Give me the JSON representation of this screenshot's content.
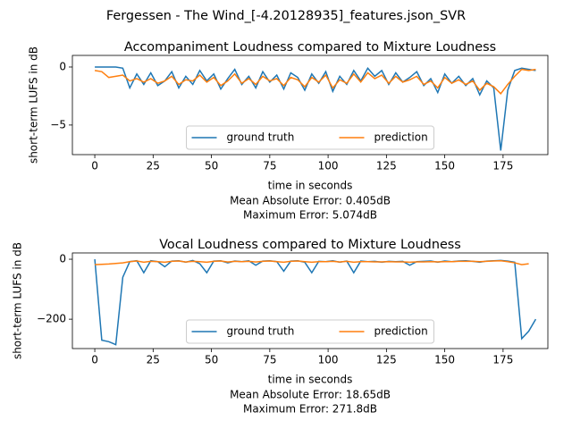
{
  "title": "Fergessen - The Wind_[-4.20128935]_features.json_SVR",
  "chart_data": [
    {
      "type": "line",
      "title": "Accompaniment Loudness compared to Mixture Loudness",
      "xlabel": "time in seconds",
      "ylabel": "short-term LUFS in dB",
      "annotations": [
        "Mean Absolute Error: 0.405dB",
        "Maximum Error: 5.074dB"
      ],
      "x": [
        0,
        3,
        6,
        9,
        12,
        15,
        18,
        21,
        24,
        27,
        30,
        33,
        36,
        39,
        42,
        45,
        48,
        51,
        54,
        57,
        60,
        63,
        66,
        69,
        72,
        75,
        78,
        81,
        84,
        87,
        90,
        93,
        96,
        99,
        102,
        105,
        108,
        111,
        114,
        117,
        120,
        123,
        126,
        129,
        132,
        135,
        138,
        141,
        144,
        147,
        150,
        153,
        156,
        159,
        162,
        165,
        168,
        171,
        174,
        177,
        180,
        183,
        186,
        189
      ],
      "series": [
        {
          "name": "ground truth",
          "color": "#1f77b4",
          "values": [
            0,
            0,
            0,
            0,
            -0.1,
            -1.8,
            -0.6,
            -1.5,
            -0.5,
            -1.6,
            -1.2,
            -0.4,
            -1.8,
            -0.8,
            -1.5,
            -0.3,
            -1.2,
            -0.6,
            -1.9,
            -1.0,
            -0.2,
            -1.5,
            -0.8,
            -1.8,
            -0.4,
            -1.3,
            -0.7,
            -1.9,
            -0.5,
            -0.9,
            -2.0,
            -0.6,
            -1.4,
            -0.4,
            -2.1,
            -0.8,
            -1.5,
            -0.3,
            -1.2,
            -0.1,
            -0.8,
            -0.3,
            -1.5,
            -0.5,
            -1.3,
            -0.9,
            -0.4,
            -1.6,
            -1.0,
            -2.2,
            -0.6,
            -1.4,
            -0.8,
            -1.6,
            -1.0,
            -2.4,
            -1.2,
            -1.8,
            -7.2,
            -2.0,
            -0.3,
            -0.1,
            -0.2,
            -0.3
          ]
        },
        {
          "name": "prediction",
          "color": "#ff7f0e",
          "values": [
            -0.3,
            -0.4,
            -0.9,
            -0.8,
            -0.7,
            -1.2,
            -1.0,
            -1.3,
            -1.0,
            -1.4,
            -1.2,
            -0.8,
            -1.5,
            -1.1,
            -1.2,
            -0.7,
            -1.3,
            -0.9,
            -1.6,
            -1.2,
            -0.6,
            -1.4,
            -1.0,
            -1.5,
            -0.8,
            -1.2,
            -1.0,
            -1.6,
            -0.9,
            -1.1,
            -1.7,
            -0.9,
            -1.3,
            -0.7,
            -1.8,
            -1.1,
            -1.4,
            -0.6,
            -1.3,
            -0.5,
            -1.0,
            -0.7,
            -1.4,
            -0.8,
            -1.3,
            -1.1,
            -0.8,
            -1.5,
            -1.2,
            -1.8,
            -0.9,
            -1.4,
            -1.1,
            -1.5,
            -1.2,
            -2.0,
            -1.4,
            -1.7,
            -2.3,
            -1.5,
            -0.8,
            -0.2,
            -0.3,
            -0.2
          ]
        }
      ],
      "xlim": [
        -9.6,
        194.2
      ],
      "xticks": [
        0,
        25,
        50,
        75,
        100,
        125,
        150,
        175
      ],
      "ylim": [
        -7.55,
        1.0
      ],
      "yticks": [
        {
          "value": -5,
          "label": "−5"
        },
        0
      ],
      "legend": "lower center"
    },
    {
      "type": "line",
      "title": "Vocal Loudness compared to Mixture Loudness",
      "xlabel": "time in seconds",
      "ylabel": "short-term LUFS in dB",
      "annotations": [
        "Mean Absolute Error: 18.65dB",
        "Maximum Error: 271.8dB"
      ],
      "x": [
        0,
        3,
        6,
        9,
        12,
        15,
        18,
        21,
        24,
        27,
        30,
        33,
        36,
        39,
        42,
        45,
        48,
        51,
        54,
        57,
        60,
        63,
        66,
        69,
        72,
        75,
        78,
        81,
        84,
        87,
        90,
        93,
        96,
        99,
        102,
        105,
        108,
        111,
        114,
        117,
        120,
        123,
        126,
        129,
        132,
        135,
        138,
        141,
        144,
        147,
        150,
        153,
        156,
        159,
        162,
        165,
        168,
        171,
        174,
        177,
        180,
        183,
        186,
        189
      ],
      "series": [
        {
          "name": "ground truth",
          "color": "#1f77b4",
          "values": [
            0,
            -270,
            -275,
            -285,
            -60,
            -8,
            -5,
            -45,
            -5,
            -8,
            -25,
            -6,
            -5,
            -10,
            -4,
            -15,
            -45,
            -6,
            -5,
            -12,
            -6,
            -8,
            -5,
            -20,
            -6,
            -5,
            -8,
            -40,
            -6,
            -5,
            -10,
            -45,
            -7,
            -8,
            -5,
            -10,
            -6,
            -45,
            -6,
            -8,
            -7,
            -10,
            -7,
            -8,
            -7,
            -20,
            -8,
            -7,
            -6,
            -10,
            -6,
            -8,
            -6,
            -5,
            -7,
            -10,
            -6,
            -5,
            -4,
            -6,
            -10,
            -265,
            -240,
            -200
          ]
        },
        {
          "name": "prediction",
          "color": "#ff7f0e",
          "values": [
            -18,
            -17,
            -16,
            -14,
            -12,
            -8,
            -6,
            -10,
            -7,
            -8,
            -10,
            -7,
            -6,
            -9,
            -7,
            -8,
            -10,
            -7,
            -6,
            -9,
            -7,
            -8,
            -7,
            -9,
            -7,
            -6,
            -8,
            -10,
            -7,
            -6,
            -8,
            -10,
            -8,
            -8,
            -7,
            -9,
            -7,
            -10,
            -8,
            -8,
            -9,
            -9,
            -8,
            -9,
            -9,
            -10,
            -9,
            -9,
            -8,
            -9,
            -8,
            -8,
            -7,
            -7,
            -7,
            -8,
            -7,
            -6,
            -5,
            -8,
            -12,
            -18,
            -15,
            null
          ]
        }
      ],
      "xlim": [
        -9.6,
        194.2
      ],
      "xticks": [
        0,
        25,
        50,
        75,
        100,
        125,
        150,
        175
      ],
      "ylim": [
        -298,
        21
      ],
      "yticks": [
        {
          "value": -200,
          "label": "−200"
        },
        0
      ],
      "legend": "lower center"
    }
  ]
}
